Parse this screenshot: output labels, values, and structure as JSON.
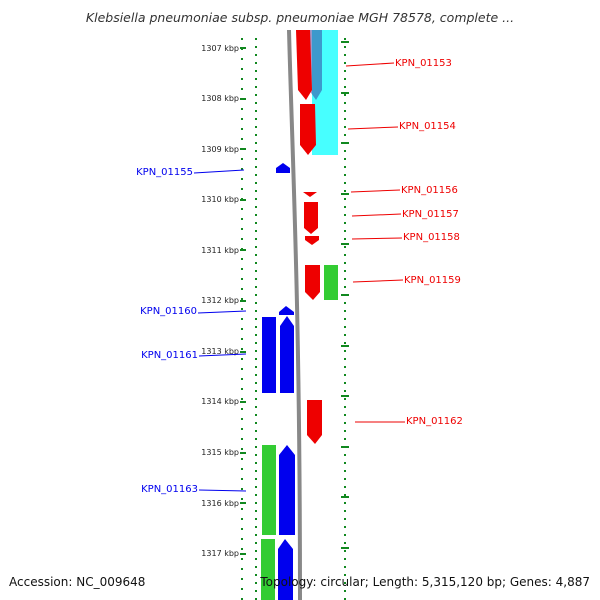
{
  "title": "Klebsiella pneumoniae subsp. pneumoniae MGH 78578, complete ...",
  "accession": "Accession: NC_009648",
  "topology": "Topology: circular; Length: 5,315,120 bp; Genes: 4,887",
  "colors": {
    "red": "#ee0000",
    "blue": "#0000ee",
    "green": "#33cc33",
    "cyan": "#33ffff",
    "navy": "#333399"
  },
  "ruler": [
    "1307 kbp",
    "1308 kbp",
    "1309 kbp",
    "1310 kbp",
    "1311 kbp",
    "1312 kbp",
    "1313 kbp",
    "1314 kbp",
    "1315 kbp",
    "1316 kbp",
    "1317 kbp"
  ],
  "genes": [
    {
      "id": "KPN_01153",
      "strand": "right"
    },
    {
      "id": "KPN_01154",
      "strand": "right"
    },
    {
      "id": "KPN_01155",
      "strand": "left"
    },
    {
      "id": "KPN_01156",
      "strand": "right"
    },
    {
      "id": "KPN_01157",
      "strand": "right"
    },
    {
      "id": "KPN_01158",
      "strand": "right"
    },
    {
      "id": "KPN_01159",
      "strand": "right"
    },
    {
      "id": "KPN_01160",
      "strand": "left"
    },
    {
      "id": "KPN_01161",
      "strand": "left"
    },
    {
      "id": "KPN_01162",
      "strand": "right"
    },
    {
      "id": "KPN_01163",
      "strand": "left"
    }
  ]
}
